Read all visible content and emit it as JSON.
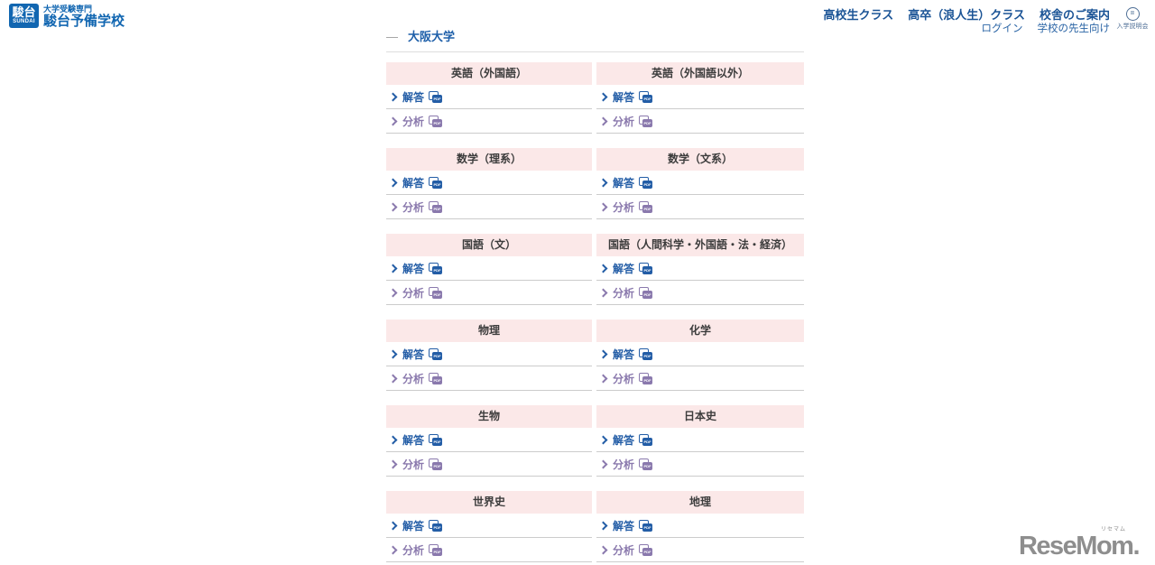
{
  "header": {
    "logo": {
      "box_kanji": "駿台",
      "box_romaji": "SUNDAI",
      "tagline": "大学受験専門",
      "school_name": "駿台予備学校"
    },
    "nav_primary": [
      {
        "label": "高校生クラス"
      },
      {
        "label": "高卒（浪人生）クラス"
      },
      {
        "label": "校舎のご案内"
      }
    ],
    "nav_secondary": [
      {
        "label": "ログイン"
      },
      {
        "label": "学校の先生向け"
      }
    ],
    "seminar": {
      "icon_glyph": "=",
      "label": "入学説明会"
    }
  },
  "main": {
    "title_dash": "—",
    "title": "大阪大学",
    "link_labels": {
      "answer": "解答",
      "analysis": "分析"
    },
    "pdf_label": "PDF",
    "subjects": [
      "英語（外国語）",
      "英語（外国語以外）",
      "数学（理系）",
      "数学（文系）",
      "国語（文）",
      "国語（人間科学・外国語・法・経済）",
      "物理",
      "化学",
      "生物",
      "日本史",
      "世界史",
      "地理"
    ]
  },
  "watermark": {
    "text": "ReseMom.",
    "ruby": "リセマム"
  },
  "colors": {
    "logo_blue": "#1166b1",
    "nav_blue": "#1b5496",
    "link_blue": "#235da6",
    "visited_purple": "#8a79ad",
    "header_pink": "#fbe8e8",
    "row_border": "#cccccc"
  }
}
